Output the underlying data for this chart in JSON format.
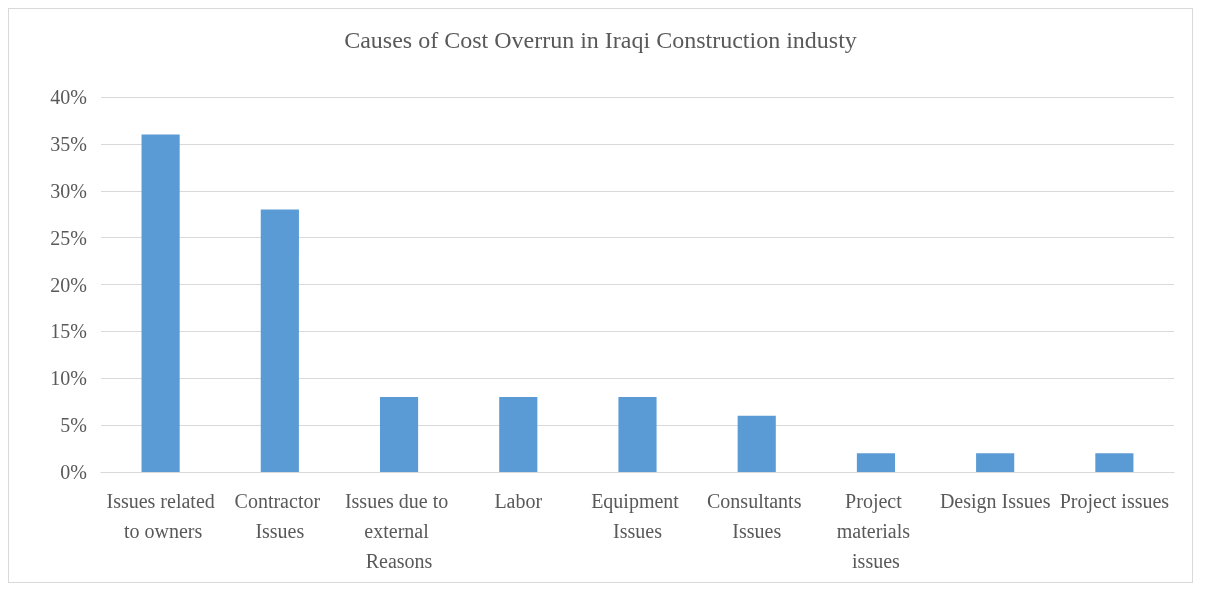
{
  "chart_data": {
    "type": "bar",
    "title": "Causes of Cost Overrun in Iraqi Construction industy",
    "categories": [
      "Issues related to owners",
      "Contractor Issues",
      "Issues due to external Reasons",
      "Labor",
      "Equipment Issues",
      "Consultants Issues",
      "Project materials issues",
      "Design Issues",
      "Project issues"
    ],
    "values": [
      36,
      28,
      8,
      8,
      8,
      6,
      2,
      2,
      2
    ],
    "color": "#5b9bd5",
    "ylim": [
      0,
      40
    ],
    "yticks": [
      {
        "value": 0,
        "label": "0%"
      },
      {
        "value": 5,
        "label": "5%"
      },
      {
        "value": 10,
        "label": "10%"
      },
      {
        "value": 15,
        "label": "15%"
      },
      {
        "value": 20,
        "label": "20%"
      },
      {
        "value": 25,
        "label": "25%"
      },
      {
        "value": 30,
        "label": "30%"
      },
      {
        "value": 35,
        "label": "35%"
      },
      {
        "value": 40,
        "label": "40%"
      }
    ],
    "grid": "y"
  }
}
